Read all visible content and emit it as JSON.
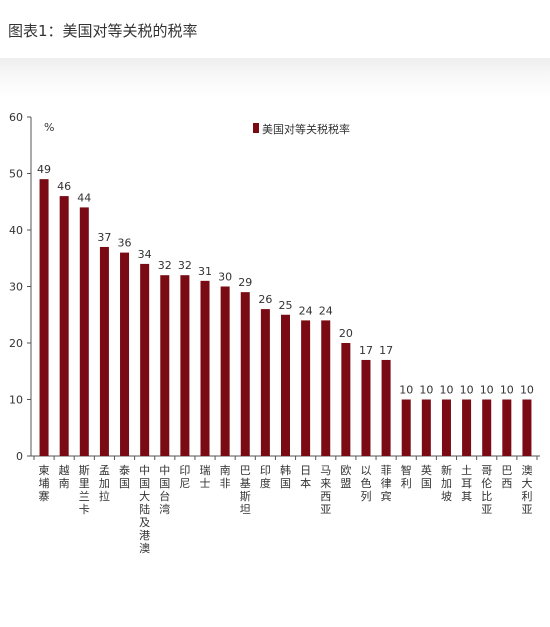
{
  "figure_title": "图表1：美国对等关税的税率",
  "chart_data": {
    "type": "bar",
    "title": "",
    "ylabel": "%",
    "xlabel": "",
    "ylim": [
      0,
      60
    ],
    "yticks": [
      0,
      10,
      20,
      30,
      40,
      50,
      60
    ],
    "grid": false,
    "legend_position": "top-center",
    "colors": {
      "bar": "#7a0a13",
      "axis": "#555555",
      "text": "#333333"
    },
    "categories": [
      "柬埔寨",
      "越南",
      "斯里兰卡",
      "孟加拉",
      "泰国",
      "中国大陆及港澳",
      "中国台湾",
      "印尼",
      "瑞士",
      "南非",
      "巴基斯坦",
      "印度",
      "韩国",
      "日本",
      "马来西亚",
      "欧盟",
      "以色列",
      "菲律宾",
      "智利",
      "英国",
      "新加坡",
      "土耳其",
      "哥伦比亚",
      "巴西",
      "澳大利亚"
    ],
    "series": [
      {
        "name": "美国对等关税税率",
        "values": [
          49,
          46,
          44,
          37,
          36,
          34,
          32,
          32,
          31,
          30,
          29,
          26,
          25,
          24,
          24,
          20,
          17,
          17,
          10,
          10,
          10,
          10,
          10,
          10,
          10
        ]
      }
    ]
  }
}
